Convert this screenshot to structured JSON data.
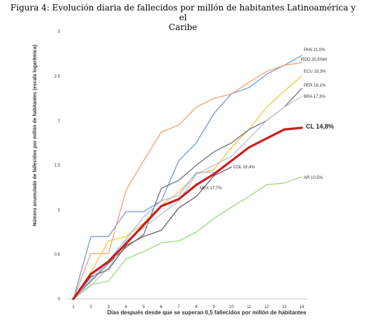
{
  "caption": {
    "line1": "Figura 4: Evolución diaria de fallecidos por millón de habitantes Latinoamérica y el",
    "line2": "Caribe"
  },
  "chart_data": {
    "type": "line",
    "xlabel": "Días después desde que se superan 0,5 fallecidos por millón de habitantes",
    "ylabel": "Número acumulado de fallecidos por millón de habitantes (escala logarítmica)",
    "xlim": [
      1,
      14
    ],
    "ylim": [
      0,
      3
    ],
    "x": [
      1,
      2,
      3,
      4,
      5,
      6,
      7,
      8,
      9,
      10,
      11,
      12,
      13,
      14
    ],
    "x_tick_labels": [
      "1",
      "2",
      "3",
      "4",
      "5",
      "6",
      "7",
      "8",
      "9",
      "10",
      "11",
      "12",
      "13",
      "14"
    ],
    "y_ticks": [
      0,
      0.5,
      1,
      1.5,
      2,
      2.5,
      3
    ],
    "y_tick_labels": [
      "0",
      "0.5",
      "1",
      "1.5",
      "2",
      "2.5",
      "3"
    ],
    "grid": false,
    "legend": "inline labels at line ends",
    "series": [
      {
        "name": "PAN 21,0%",
        "color": "#7e9fd8",
        "width": 1.4,
        "values": [
          0,
          0.7,
          0.7,
          0.98,
          0.98,
          1.1,
          1.55,
          1.75,
          2.08,
          2.3,
          2.37,
          2.52,
          2.62,
          2.73
        ]
      },
      {
        "name": "RDO 20,5%M",
        "color": "#f0a77a",
        "width": 1.4,
        "values": [
          0,
          0.51,
          0.51,
          1.22,
          1.55,
          1.87,
          1.95,
          2.15,
          2.25,
          2.3,
          2.43,
          2.55,
          2.62,
          2.65
        ]
      },
      {
        "name": "ECU 19,3%",
        "color": "#f5c84a",
        "width": 1.4,
        "values": [
          0,
          0.3,
          0.65,
          0.7,
          0.85,
          1.05,
          1.2,
          1.4,
          1.45,
          1.7,
          1.9,
          2.15,
          2.33,
          2.5
        ]
      },
      {
        "name": "PER 18,1%",
        "color": "#6b7a8f",
        "width": 1.4,
        "values": [
          0,
          0.2,
          0.4,
          0.58,
          0.72,
          1.24,
          1.33,
          1.5,
          1.65,
          1.75,
          1.9,
          2.0,
          2.15,
          2.36
        ]
      },
      {
        "name": "BRA 17,3%",
        "color": "#c4c4c4",
        "width": 1.4,
        "values": [
          0,
          0.15,
          0.35,
          0.65,
          0.8,
          0.95,
          1.1,
          1.4,
          1.5,
          1.6,
          1.8,
          2.0,
          2.15,
          2.27
        ]
      },
      {
        "name": "COL 16,4%",
        "color": "#6b6b6b",
        "width": 1.4,
        "values": [
          0,
          0.25,
          0.33,
          0.6,
          0.7,
          0.77,
          1.02,
          1.15,
          1.38,
          1.48,
          null,
          null,
          null,
          null
        ]
      },
      {
        "name": "MEX 17,7%",
        "color": "#a3bde6",
        "width": 1.4,
        "values": [
          0,
          0.22,
          0.43,
          0.67,
          0.92,
          1.1,
          1.16,
          1.42,
          1.42,
          null,
          null,
          null,
          null,
          null
        ]
      },
      {
        "name": "AR 10,5%",
        "color": "#a5d68a",
        "width": 1.4,
        "values": [
          0,
          0.16,
          0.2,
          0.45,
          0.53,
          0.63,
          0.65,
          0.75,
          0.9,
          1.03,
          1.15,
          1.28,
          1.3,
          1.37
        ]
      },
      {
        "name": "CL 14,8%",
        "color": "#c81e1e",
        "width": 3.2,
        "bold": true,
        "values": [
          0,
          0.28,
          0.42,
          0.62,
          0.83,
          1.04,
          1.12,
          1.28,
          1.4,
          1.55,
          1.7,
          1.8,
          1.9,
          1.92
        ]
      }
    ]
  }
}
